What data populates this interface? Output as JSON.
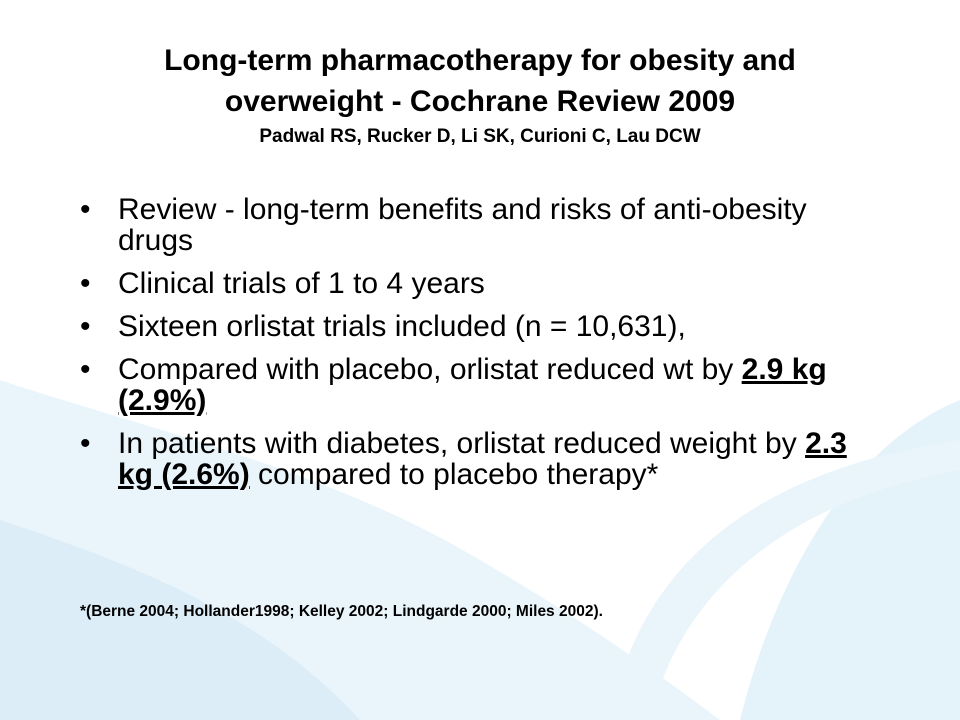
{
  "slide": {
    "title_line1": "Long-term pharmacotherapy for obesity and",
    "title_line2": "overweight - Cochrane Review 2009",
    "authors": "Padwal RS, Rucker D, Li SK, Curioni C, Lau DCW",
    "bullets": [
      {
        "text": "Review - long-term benefits and risks of anti-obesity drugs"
      },
      {
        "text": "Clinical trials of 1 to 4 years"
      },
      {
        "text": "Sixteen orlistat trials included (n = 10,631),"
      },
      {
        "before": "Compared  with  placebo, orlistat reduced wt by ",
        "highlight": "2.9 kg (2.9%)",
        "after": ""
      },
      {
        "before": "In patients with diabetes, orlistat reduced weight by ",
        "highlight": "2.3 kg (2.6%)",
        "after": " compared to placebo therapy*"
      }
    ],
    "footnote": "*(Berne 2004; Hollander1998; Kelley 2002; Lindgarde 2000; Miles 2002)."
  },
  "colors": {
    "background": "#ffffff",
    "wave_light": "#eaf5fb",
    "wave_mid": "#dcedf7",
    "text": "#000000"
  }
}
